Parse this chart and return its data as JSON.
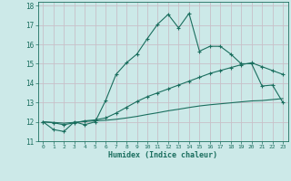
{
  "title": "",
  "xlabel": "Humidex (Indice chaleur)",
  "bg_color": "#cce9e8",
  "grid_color": "#c8c0c8",
  "line_color": "#1a6e5e",
  "xlim": [
    -0.5,
    23.5
  ],
  "ylim": [
    11,
    18.2
  ],
  "xticks": [
    0,
    1,
    2,
    3,
    4,
    5,
    6,
    7,
    8,
    9,
    10,
    11,
    12,
    13,
    14,
    15,
    16,
    17,
    18,
    19,
    20,
    21,
    22,
    23
  ],
  "yticks": [
    11,
    12,
    13,
    14,
    15,
    16,
    17,
    18
  ],
  "line1_x": [
    0,
    1,
    2,
    3,
    4,
    5,
    6,
    7,
    8,
    9,
    10,
    11,
    12,
    13,
    14,
    15,
    16,
    17,
    18,
    19,
    20,
    21,
    22,
    23
  ],
  "line1_y": [
    12.0,
    11.6,
    11.5,
    12.0,
    11.85,
    12.0,
    13.1,
    14.45,
    15.05,
    15.5,
    16.3,
    17.05,
    17.55,
    16.85,
    17.6,
    15.65,
    15.9,
    15.9,
    15.5,
    15.0,
    15.0,
    13.85,
    13.9,
    13.0
  ],
  "line2_x": [
    0,
    1,
    2,
    3,
    4,
    5,
    6,
    7,
    8,
    9,
    10,
    11,
    12,
    13,
    14,
    15,
    16,
    17,
    18,
    19,
    20,
    21,
    22,
    23
  ],
  "line2_y": [
    12.0,
    11.95,
    11.85,
    11.95,
    12.05,
    12.1,
    12.2,
    12.45,
    12.75,
    13.05,
    13.3,
    13.5,
    13.7,
    13.9,
    14.1,
    14.3,
    14.5,
    14.65,
    14.8,
    14.95,
    15.05,
    14.85,
    14.65,
    14.45
  ],
  "line3_x": [
    0,
    1,
    2,
    3,
    4,
    5,
    6,
    7,
    8,
    9,
    10,
    11,
    12,
    13,
    14,
    15,
    16,
    17,
    18,
    19,
    20,
    21,
    22,
    23
  ],
  "line3_y": [
    12.0,
    11.97,
    11.93,
    11.97,
    12.02,
    12.05,
    12.08,
    12.13,
    12.2,
    12.28,
    12.38,
    12.47,
    12.57,
    12.65,
    12.74,
    12.82,
    12.88,
    12.93,
    12.98,
    13.03,
    13.08,
    13.1,
    13.15,
    13.2
  ]
}
